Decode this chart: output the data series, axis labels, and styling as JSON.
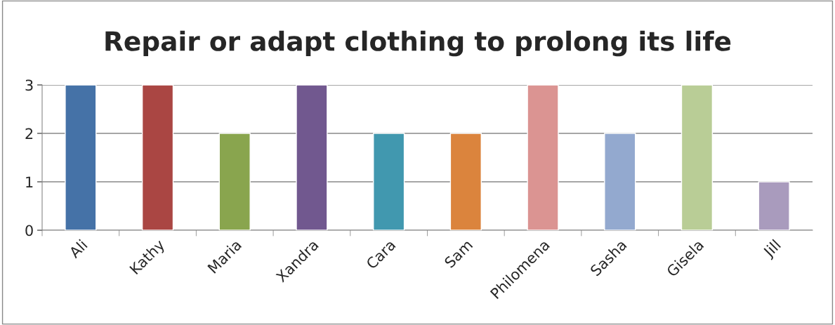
{
  "chart_data": {
    "type": "bar",
    "title": "Repair or adapt clothing to prolong its life",
    "categories": [
      "Ali",
      "Kathy",
      "Maria",
      "Xandra",
      "Cara",
      "Sam",
      "Philomena",
      "Sasha",
      "Gisela",
      "Jill"
    ],
    "values": [
      3,
      3,
      2,
      3,
      2,
      2,
      3,
      2,
      3,
      1
    ],
    "colors": [
      "#4572a7",
      "#aa4643",
      "#89a54e",
      "#71588f",
      "#4198af",
      "#db843d",
      "#db9492",
      "#93a9cf",
      "#b9cd96",
      "#a99bbd"
    ],
    "ylim": [
      0,
      3
    ],
    "yticks": [
      0,
      1,
      2,
      3
    ],
    "grid": "y"
  }
}
